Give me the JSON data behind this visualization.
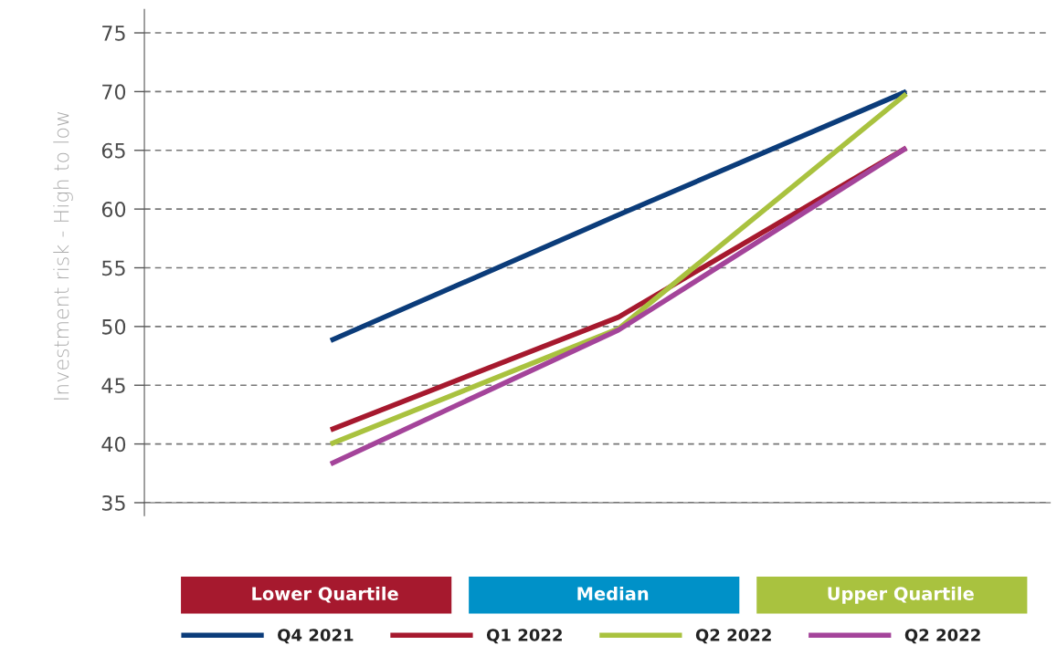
{
  "chart_data": {
    "type": "line",
    "ylabel": "Investment risk - High to low",
    "categories": [
      "Lower Quartile",
      "Median",
      "Upper Quartile"
    ],
    "series": [
      {
        "name": "Q4 2021",
        "color": "#0b3c7a",
        "values": [
          48.8,
          59.5,
          70
        ]
      },
      {
        "name": "Q1 2022",
        "color": "#a6192e",
        "values": [
          41.2,
          50.8,
          65.2
        ]
      },
      {
        "name": "Q2 2022",
        "color": "#a9c23f",
        "values": [
          40,
          49.8,
          69.8
        ]
      },
      {
        "name": "Q2 2022",
        "color": "#a4449a",
        "values": [
          38.3,
          49.7,
          65.2
        ]
      }
    ],
    "ylim": [
      35,
      77
    ],
    "yticks": [
      35,
      40,
      45,
      50,
      55,
      60,
      65,
      70,
      75
    ],
    "grid": "y",
    "legend": "bottom",
    "marker": "none",
    "line_style": "solid"
  }
}
